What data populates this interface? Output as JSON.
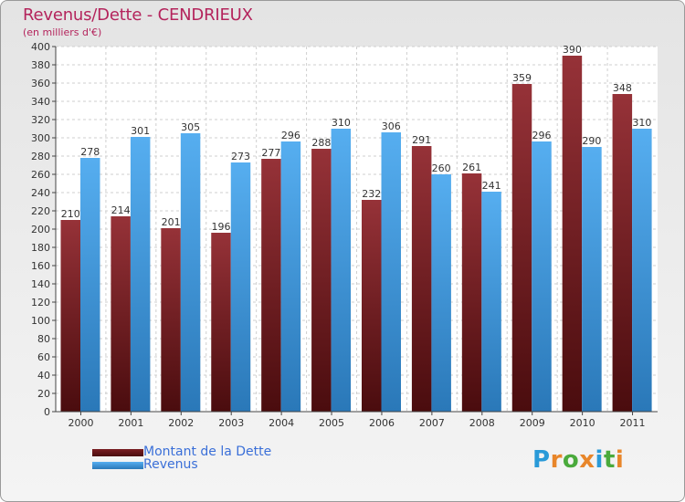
{
  "header": {
    "title": "Revenus/Dette - CENDRIEUX",
    "subtitle": "(en milliers d'€)"
  },
  "logo": {
    "text": "Proxiti",
    "letters": [
      "P",
      "r",
      "o",
      "x",
      "i",
      "t",
      "i"
    ],
    "colors": [
      "#2a9ad8",
      "#e8862a",
      "#4aaa3c",
      "#e8862a",
      "#2a9ad8",
      "#4aaa3c",
      "#e8862a"
    ]
  },
  "chart_data": {
    "type": "bar",
    "title": "Revenus/Dette - CENDRIEUX",
    "subtitle": "(en milliers d'€)",
    "xlabel": "",
    "ylabel": "",
    "ylim": [
      0,
      400
    ],
    "ytick_step": 20,
    "grid": true,
    "legend_position": "bottom-left",
    "categories": [
      "2000",
      "2001",
      "2002",
      "2003",
      "2004",
      "2005",
      "2006",
      "2007",
      "2008",
      "2009",
      "2010",
      "2011"
    ],
    "series": [
      {
        "name": "Montant de la Dette",
        "color": "#8b2a2e",
        "values": [
          210,
          214,
          201,
          196,
          277,
          288,
          232,
          291,
          261,
          359,
          390,
          348
        ]
      },
      {
        "name": "Revenus",
        "color": "#4aa3e8",
        "values": [
          278,
          301,
          305,
          273,
          296,
          310,
          306,
          260,
          241,
          296,
          290,
          310
        ]
      }
    ]
  }
}
